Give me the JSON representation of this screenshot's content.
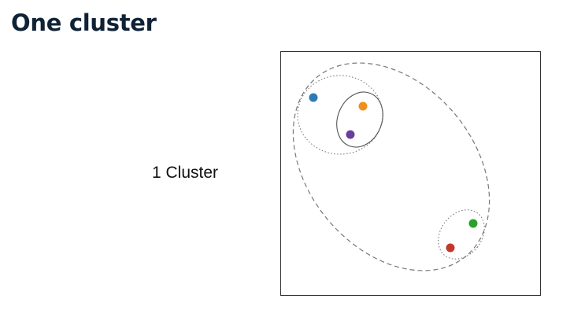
{
  "slide": {
    "title": "One cluster",
    "label": "1 Cluster"
  },
  "diagram": {
    "frame_color": "#333333",
    "points": [
      {
        "name": "blue-point",
        "color": "#2c7bb6"
      },
      {
        "name": "orange-point",
        "color": "#f28e1c"
      },
      {
        "name": "purple-point",
        "color": "#6a3d9a"
      },
      {
        "name": "green-point",
        "color": "#2ca02c"
      },
      {
        "name": "red-point",
        "color": "#c0392b"
      }
    ],
    "groupings": [
      {
        "name": "pair-orange-purple",
        "style": "solid"
      },
      {
        "name": "group-blue-orange-purple",
        "style": "dotted"
      },
      {
        "name": "pair-green-red",
        "style": "dotted"
      },
      {
        "name": "all-points-cluster",
        "style": "dashed"
      }
    ]
  }
}
